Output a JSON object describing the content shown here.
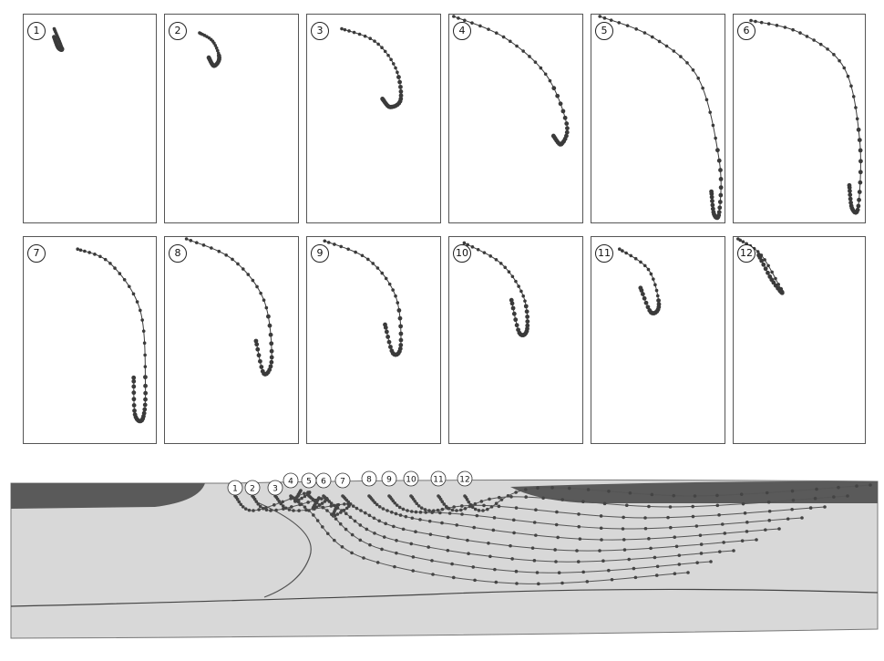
{
  "panels": [
    {
      "label": "1"
    },
    {
      "label": "2"
    },
    {
      "label": "3"
    },
    {
      "label": "4"
    },
    {
      "label": "5"
    },
    {
      "label": "6"
    },
    {
      "label": "7"
    },
    {
      "label": "8"
    },
    {
      "label": "9"
    },
    {
      "label": "10"
    },
    {
      "label": "11"
    },
    {
      "label": "12"
    }
  ],
  "section": {
    "stage_labels": [
      "1",
      "2",
      "3",
      "4",
      "5",
      "6",
      "7",
      "8",
      "9",
      "10",
      "11",
      "12"
    ]
  },
  "colors": {
    "ink": "#3a3a3a",
    "surface": "#d8d8d8",
    "dark_band": "#5a5a5a"
  }
}
